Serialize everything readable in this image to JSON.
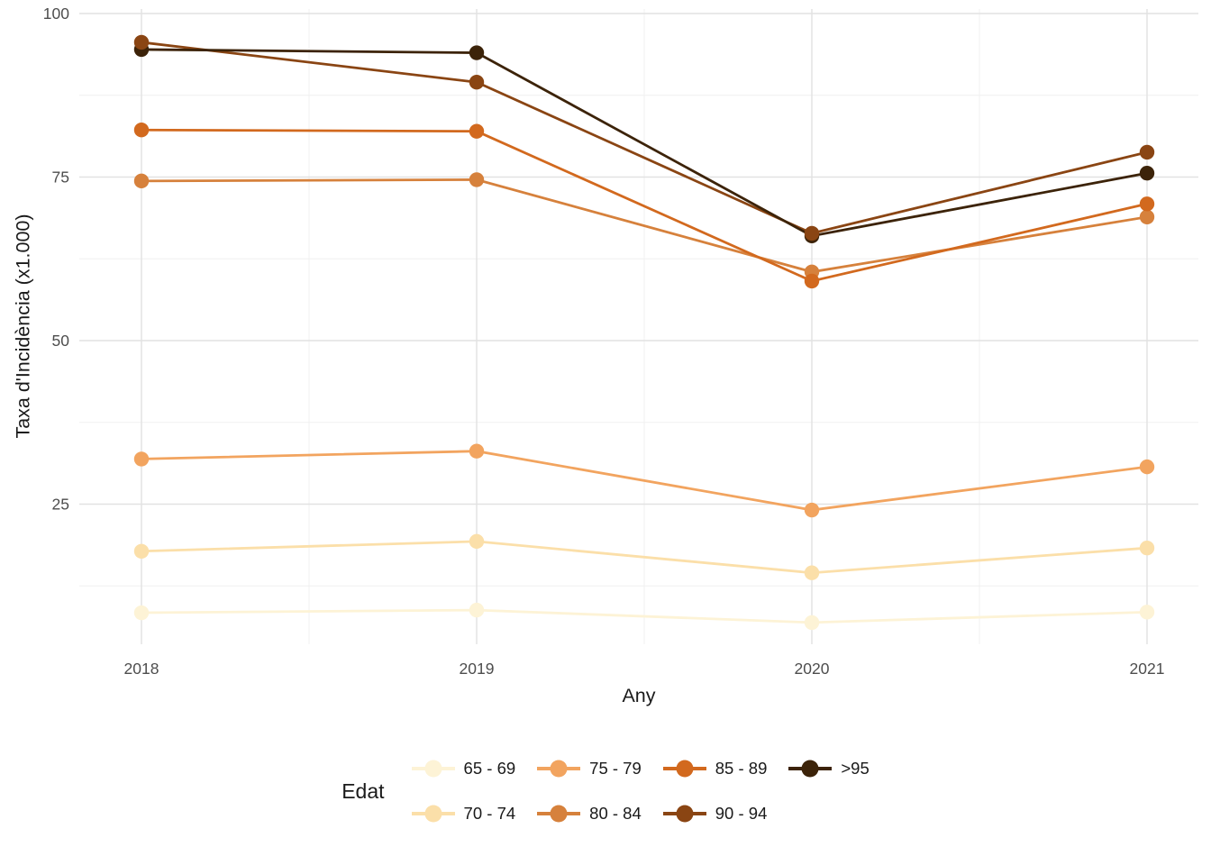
{
  "figure": {
    "background": "#ffffff",
    "grid_major_color": "#e2e2e2",
    "grid_minor_color": "#f0f0f0",
    "tick_label_color": "#4d4d4d",
    "axis_title_color": "#1a1a1a"
  },
  "chart_data": {
    "type": "line",
    "title": "",
    "xlabel": "Any",
    "ylabel": "Taxa d'Incidència (x1.000)",
    "x": [
      "2018",
      "2019",
      "2020",
      "2021"
    ],
    "y_ticks": [
      25,
      50,
      75,
      100
    ],
    "y_minor_ticks": [
      12.5,
      37.5,
      62.5,
      87.5
    ],
    "ylim": [
      3,
      101
    ],
    "grid": true,
    "legend_title": "Edat",
    "legend_position": "bottom",
    "series": [
      {
        "name": "65 - 69",
        "color": "#FDF3D6",
        "values": [
          8.4,
          8.8,
          6.9,
          8.5
        ]
      },
      {
        "name": "70 - 74",
        "color": "#FBDFA9",
        "values": [
          17.8,
          19.3,
          14.5,
          18.3
        ]
      },
      {
        "name": "75 - 79",
        "color": "#F2A45F",
        "values": [
          31.9,
          33.1,
          24.1,
          30.7
        ]
      },
      {
        "name": "80 - 84",
        "color": "#D6813C",
        "values": [
          74.4,
          74.6,
          60.5,
          68.9
        ]
      },
      {
        "name": "85 - 89",
        "color": "#D2691E",
        "values": [
          82.2,
          82.0,
          59.1,
          70.9
        ]
      },
      {
        "name": "90 - 94",
        "color": "#8A4513",
        "values": [
          95.6,
          89.5,
          66.4,
          78.8
        ]
      },
      {
        "name": ">95",
        "color": "#3C2309",
        "values": [
          94.5,
          94.0,
          66.0,
          75.6
        ]
      }
    ]
  }
}
